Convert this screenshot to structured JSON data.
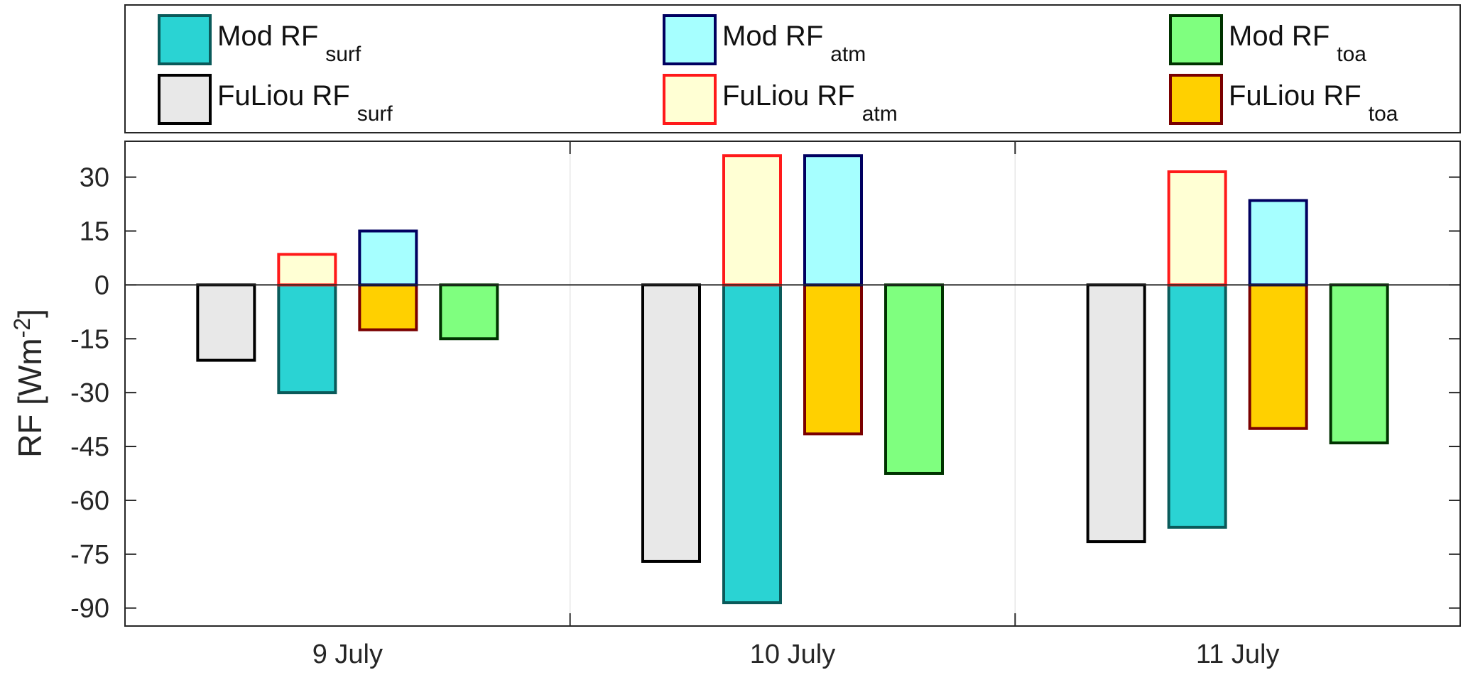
{
  "chart_data": {
    "type": "bar",
    "categories": [
      "9 July",
      "10 July",
      "11 July"
    ],
    "ylabel": {
      "main": "RF [Wm",
      "sup": "-2",
      "close": "]"
    },
    "ylim": [
      -95,
      40
    ],
    "yticks": [
      30,
      15,
      0,
      -15,
      -30,
      -45,
      -60,
      -75,
      -90
    ],
    "grid": false,
    "legend_position": "top",
    "series": [
      {
        "key": "fuliou_surf",
        "name": "FuLiou RF",
        "sub": "surf",
        "fill": "#e8e8e8",
        "stroke": "#000000",
        "values": [
          -21,
          -77,
          -71.5
        ]
      },
      {
        "key": "mod_surf",
        "name": "Mod RF",
        "sub": "surf",
        "fill": "#2ad3d3",
        "stroke": "#0a5a5a",
        "values": [
          -30,
          -88.5,
          -67.5
        ]
      },
      {
        "key": "fuliou_atm",
        "name": "FuLiou RF",
        "sub": "atm",
        "fill": "#ffffd4",
        "stroke": "#ff1a1a",
        "values": [
          8.5,
          36,
          31.5
        ]
      },
      {
        "key": "mod_atm",
        "name": "Mod RF",
        "sub": "atm",
        "fill": "#a6ffff",
        "stroke": "#000060",
        "values": [
          15,
          36,
          23.5
        ]
      },
      {
        "key": "fuliou_toa",
        "name": "FuLiou RF",
        "sub": "toa",
        "fill": "#ffd000",
        "stroke": "#7a0000",
        "values": [
          -12.5,
          -41.5,
          -40
        ]
      },
      {
        "key": "mod_toa",
        "name": "Mod RF",
        "sub": "toa",
        "fill": "#7fff7f",
        "stroke": "#003300",
        "values": [
          -15,
          -52.5,
          -44
        ]
      }
    ],
    "group_order_negative": [
      "fuliou_surf",
      "mod_surf",
      "fuliou_toa",
      "mod_toa"
    ],
    "group_order_positive": [
      "fuliou_atm",
      "mod_atm"
    ],
    "legend_rows": [
      [
        "mod_surf",
        "mod_atm",
        "mod_toa"
      ],
      [
        "fuliou_surf",
        "fuliou_atm",
        "fuliou_toa"
      ]
    ]
  }
}
